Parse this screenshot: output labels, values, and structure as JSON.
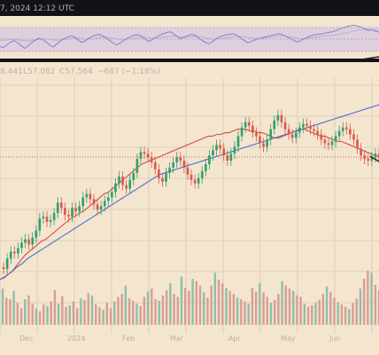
{
  "header": {
    "timestamp_text": "7, 2024 12:12 UTC"
  },
  "chart_data": [
    {
      "type": "line",
      "title": "",
      "xlabel": "",
      "ylabel": "",
      "x": [
        0,
        4,
        8,
        12,
        16,
        20,
        24,
        28,
        32,
        36,
        40,
        44,
        48,
        52,
        56,
        60,
        64,
        68,
        72,
        76,
        80,
        84,
        88,
        92,
        96,
        100,
        104,
        108,
        112,
        116,
        120,
        124,
        128,
        132,
        136,
        140,
        144,
        148,
        152,
        156,
        160,
        164,
        168,
        172,
        176,
        180,
        184,
        188,
        192,
        196,
        200,
        204,
        208,
        212,
        216,
        220,
        224,
        228,
        232,
        236,
        240,
        244,
        248,
        252,
        256,
        260,
        264,
        268,
        272,
        276,
        280,
        284,
        288,
        292,
        296,
        300,
        304,
        308,
        312,
        316,
        320,
        324,
        328,
        332,
        336,
        340,
        344,
        348,
        352,
        356,
        360,
        364,
        368,
        372,
        376,
        380,
        384,
        388,
        392,
        396,
        400,
        404,
        408,
        412,
        416,
        420,
        424,
        428
      ],
      "series": [
        {
          "values": [
            72,
            74,
            68,
            61,
            58,
            63,
            70,
            76,
            69,
            62,
            57,
            52,
            55,
            61,
            68,
            73,
            66,
            59,
            54,
            50,
            47,
            49,
            56,
            62,
            59,
            53,
            48,
            45,
            43,
            47,
            52,
            58,
            64,
            68,
            63,
            57,
            52,
            48,
            45,
            44,
            48,
            54,
            60,
            55,
            50,
            46,
            42,
            39,
            37,
            42,
            48,
            54,
            50,
            46,
            43,
            45,
            51,
            57,
            62,
            65,
            60,
            54,
            49,
            46,
            44,
            43,
            42,
            46,
            52,
            58,
            63,
            60,
            56,
            53,
            51,
            49,
            47,
            45,
            43,
            42,
            45,
            49,
            53,
            58,
            61,
            57,
            53,
            49,
            46,
            44,
            43,
            42,
            40,
            38,
            37,
            34,
            30,
            27,
            25,
            23,
            22,
            24,
            26,
            30,
            34,
            32,
            36,
            38
          ]
        },
        {
          "values": [
            58,
            57,
            56,
            55,
            55,
            56,
            57,
            58,
            58,
            57,
            56,
            55,
            54,
            54,
            55,
            56,
            57,
            56,
            55,
            54,
            53,
            52,
            52,
            53,
            54,
            54,
            53,
            52,
            51,
            50,
            50,
            51,
            52,
            54,
            55,
            55,
            54,
            53,
            52,
            51,
            50,
            50,
            51,
            52,
            52,
            51,
            50,
            49,
            48,
            47,
            48,
            49,
            50,
            50,
            49,
            48,
            48,
            49,
            51,
            53,
            54,
            54,
            53,
            52,
            51,
            50,
            49,
            48,
            48,
            49,
            50,
            52,
            53,
            53,
            52,
            51,
            50,
            49,
            48,
            47,
            47,
            48,
            49,
            50,
            52,
            53,
            53,
            52,
            51,
            50,
            49,
            48,
            47,
            46,
            45,
            44,
            43,
            41,
            39,
            37,
            35,
            33,
            32,
            31,
            31,
            32,
            33,
            34
          ]
        }
      ],
      "yrange_note": "oscillator panel"
    },
    {
      "type": "line",
      "title": "",
      "xlabel": "",
      "ylabel": "",
      "ohlc_text": [
        "8,441",
        "L57,082",
        "C57,564",
        "−687 (−1.18%)"
      ],
      "x_labels": [
        "Dec",
        "2024",
        "Feb",
        "Mar",
        "Apr",
        "May",
        "Jun"
      ],
      "series": [
        {
          "values": [
            0.07,
            0.06,
            0.12,
            0.16,
            0.15,
            0.18,
            0.21,
            0.23,
            0.2,
            0.24,
            0.28,
            0.35,
            0.36,
            0.33,
            0.34,
            0.38,
            0.44,
            0.41,
            0.37,
            0.36,
            0.41,
            0.39,
            0.42,
            0.47,
            0.49,
            0.46,
            0.43,
            0.4,
            0.42,
            0.45,
            0.47,
            0.5,
            0.55,
            0.59,
            0.54,
            0.52,
            0.57,
            0.61,
            0.69,
            0.73,
            0.72,
            0.7,
            0.67,
            0.63,
            0.58,
            0.56,
            0.61,
            0.64,
            0.67,
            0.7,
            0.68,
            0.64,
            0.6,
            0.57,
            0.55,
            0.58,
            0.62,
            0.66,
            0.71,
            0.74,
            0.77,
            0.75,
            0.71,
            0.68,
            0.72,
            0.76,
            0.82,
            0.87,
            0.9,
            0.88,
            0.84,
            0.82,
            0.78,
            0.76,
            0.8,
            0.86,
            0.91,
            0.94,
            0.9,
            0.86,
            0.83,
            0.81,
            0.84,
            0.87,
            0.89,
            0.88,
            0.86,
            0.85,
            0.83,
            0.8,
            0.78,
            0.77,
            0.79,
            0.82,
            0.85,
            0.87,
            0.86,
            0.83,
            0.8,
            0.75,
            0.71,
            0.69,
            0.68,
            0.7,
            0.72,
            0.7
          ]
        },
        {
          "values": [
            0.0,
            0.01,
            0.03,
            0.05,
            0.08,
            0.11,
            0.14,
            0.16,
            0.18,
            0.2,
            0.22,
            0.23,
            0.25,
            0.27,
            0.29,
            0.31,
            0.33,
            0.35,
            0.36,
            0.38,
            0.39,
            0.41,
            0.43,
            0.45,
            0.47,
            0.49,
            0.5,
            0.52,
            0.54,
            0.56,
            0.58,
            0.6,
            0.62,
            0.64,
            0.66,
            0.67,
            0.68,
            0.69,
            0.7,
            0.71,
            0.72,
            0.73,
            0.74,
            0.75,
            0.76,
            0.77,
            0.78,
            0.79,
            0.8,
            0.81,
            0.82,
            0.82,
            0.83,
            0.83,
            0.84,
            0.84,
            0.85,
            0.86,
            0.86,
            0.86,
            0.85,
            0.85,
            0.84,
            0.84,
            0.83,
            0.82,
            0.81,
            0.81,
            0.82,
            0.83,
            0.84,
            0.85,
            0.86,
            0.86,
            0.85,
            0.84,
            0.83,
            0.82,
            0.82,
            0.81,
            0.8,
            0.79,
            0.79,
            0.78,
            0.77,
            0.76,
            0.75,
            0.74,
            0.73,
            0.72,
            0.71,
            0.7
          ]
        },
        {
          "values": [
            0.0,
            0.02,
            0.04,
            0.07,
            0.09,
            0.12,
            0.14,
            0.16,
            0.18,
            0.2,
            0.22,
            0.24,
            0.26,
            0.28,
            0.3,
            0.32,
            0.34,
            0.36,
            0.38,
            0.4,
            0.42,
            0.44,
            0.46,
            0.48,
            0.5,
            0.52,
            0.54,
            0.56,
            0.58,
            0.6,
            0.61,
            0.62,
            0.63,
            0.64,
            0.65,
            0.66,
            0.67,
            0.68,
            0.69,
            0.7,
            0.71,
            0.72,
            0.73,
            0.74,
            0.75,
            0.76,
            0.77,
            0.78,
            0.79,
            0.8,
            0.81,
            0.82,
            0.83,
            0.84,
            0.85,
            0.86,
            0.87,
            0.88,
            0.89,
            0.9,
            0.91,
            0.92,
            0.93,
            0.94,
            0.95,
            0.96,
            0.97,
            0.98,
            0.99,
            1.0
          ]
        }
      ]
    }
  ],
  "volume_bars": [
    0.48,
    0.36,
    0.34,
    0.45,
    0.29,
    0.22,
    0.34,
    0.39,
    0.28,
    0.22,
    0.18,
    0.27,
    0.25,
    0.31,
    0.46,
    0.28,
    0.38,
    0.24,
    0.26,
    0.31,
    0.22,
    0.35,
    0.33,
    0.42,
    0.39,
    0.27,
    0.23,
    0.2,
    0.29,
    0.22,
    0.31,
    0.37,
    0.41,
    0.52,
    0.35,
    0.32,
    0.28,
    0.25,
    0.37,
    0.44,
    0.48,
    0.34,
    0.32,
    0.39,
    0.46,
    0.55,
    0.41,
    0.37,
    0.64,
    0.49,
    0.45,
    0.61,
    0.58,
    0.52,
    0.43,
    0.36,
    0.52,
    0.69,
    0.6,
    0.55,
    0.49,
    0.45,
    0.41,
    0.36,
    0.34,
    0.31,
    0.28,
    0.49,
    0.44,
    0.55,
    0.43,
    0.37,
    0.29,
    0.33,
    0.41,
    0.58,
    0.52,
    0.48,
    0.45,
    0.39,
    0.37,
    0.28,
    0.24,
    0.26,
    0.29,
    0.33,
    0.41,
    0.51,
    0.44,
    0.36,
    0.3,
    0.27,
    0.24,
    0.21,
    0.29,
    0.35,
    0.48,
    0.61,
    0.72,
    0.69,
    0.53,
    0.46
  ],
  "colors": {
    "background": "#121317",
    "panel": "#f4e5cf",
    "grid": "#d8c7b3",
    "osc_band": "#d6c7e0",
    "osc_line": "#8b7fcb",
    "osc_line_2": "#b5b0d8",
    "price_up": "#2f9f6b",
    "price_down": "#d65a4b",
    "ma_red": "#d94c44",
    "ma_blue": "#4b6fd1",
    "volume_up": "#8fbfa7",
    "volume_down": "#d89e94",
    "trend_line": "#1e1e1e",
    "text": "#b8b0a8"
  }
}
